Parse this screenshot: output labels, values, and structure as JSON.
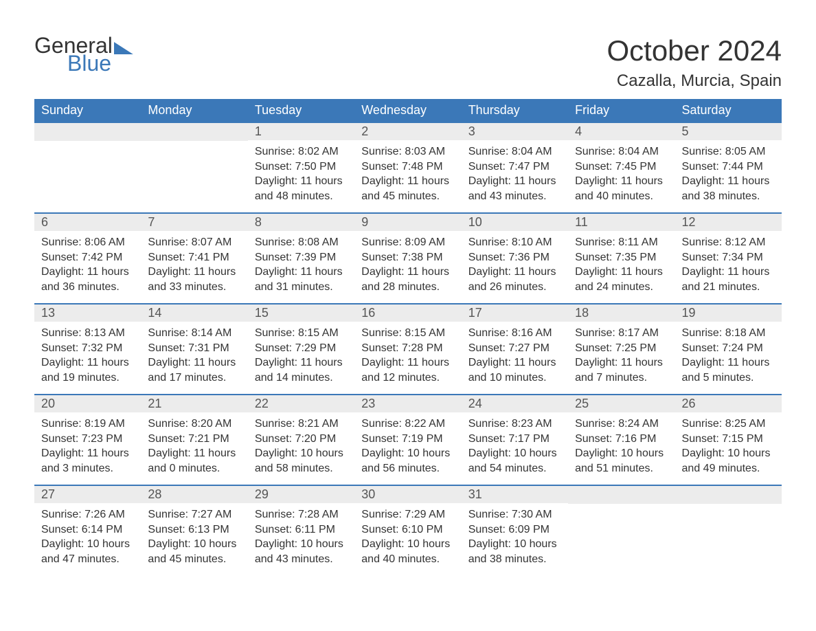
{
  "brand": {
    "word1": "General",
    "word2": "Blue"
  },
  "title": "October 2024",
  "location": "Cazalla, Murcia, Spain",
  "colors": {
    "header_bg": "#3b78b8",
    "header_text": "#ffffff",
    "daynum_bg": "#ececec",
    "text": "#333333",
    "row_border": "#3b78b8",
    "page_bg": "#ffffff"
  },
  "fonts": {
    "month_title_pt": 42,
    "location_pt": 24,
    "day_header_pt": 18,
    "daynum_pt": 18,
    "body_pt": 16
  },
  "day_headers": [
    "Sunday",
    "Monday",
    "Tuesday",
    "Wednesday",
    "Thursday",
    "Friday",
    "Saturday"
  ],
  "labels": {
    "sunrise": "Sunrise:",
    "sunset": "Sunset:",
    "daylight": "Daylight:"
  },
  "weeks": [
    [
      null,
      null,
      {
        "n": "1",
        "sr": "8:02 AM",
        "ss": "7:50 PM",
        "dl": "11 hours and 48 minutes."
      },
      {
        "n": "2",
        "sr": "8:03 AM",
        "ss": "7:48 PM",
        "dl": "11 hours and 45 minutes."
      },
      {
        "n": "3",
        "sr": "8:04 AM",
        "ss": "7:47 PM",
        "dl": "11 hours and 43 minutes."
      },
      {
        "n": "4",
        "sr": "8:04 AM",
        "ss": "7:45 PM",
        "dl": "11 hours and 40 minutes."
      },
      {
        "n": "5",
        "sr": "8:05 AM",
        "ss": "7:44 PM",
        "dl": "11 hours and 38 minutes."
      }
    ],
    [
      {
        "n": "6",
        "sr": "8:06 AM",
        "ss": "7:42 PM",
        "dl": "11 hours and 36 minutes."
      },
      {
        "n": "7",
        "sr": "8:07 AM",
        "ss": "7:41 PM",
        "dl": "11 hours and 33 minutes."
      },
      {
        "n": "8",
        "sr": "8:08 AM",
        "ss": "7:39 PM",
        "dl": "11 hours and 31 minutes."
      },
      {
        "n": "9",
        "sr": "8:09 AM",
        "ss": "7:38 PM",
        "dl": "11 hours and 28 minutes."
      },
      {
        "n": "10",
        "sr": "8:10 AM",
        "ss": "7:36 PM",
        "dl": "11 hours and 26 minutes."
      },
      {
        "n": "11",
        "sr": "8:11 AM",
        "ss": "7:35 PM",
        "dl": "11 hours and 24 minutes."
      },
      {
        "n": "12",
        "sr": "8:12 AM",
        "ss": "7:34 PM",
        "dl": "11 hours and 21 minutes."
      }
    ],
    [
      {
        "n": "13",
        "sr": "8:13 AM",
        "ss": "7:32 PM",
        "dl": "11 hours and 19 minutes."
      },
      {
        "n": "14",
        "sr": "8:14 AM",
        "ss": "7:31 PM",
        "dl": "11 hours and 17 minutes."
      },
      {
        "n": "15",
        "sr": "8:15 AM",
        "ss": "7:29 PM",
        "dl": "11 hours and 14 minutes."
      },
      {
        "n": "16",
        "sr": "8:15 AM",
        "ss": "7:28 PM",
        "dl": "11 hours and 12 minutes."
      },
      {
        "n": "17",
        "sr": "8:16 AM",
        "ss": "7:27 PM",
        "dl": "11 hours and 10 minutes."
      },
      {
        "n": "18",
        "sr": "8:17 AM",
        "ss": "7:25 PM",
        "dl": "11 hours and 7 minutes."
      },
      {
        "n": "19",
        "sr": "8:18 AM",
        "ss": "7:24 PM",
        "dl": "11 hours and 5 minutes."
      }
    ],
    [
      {
        "n": "20",
        "sr": "8:19 AM",
        "ss": "7:23 PM",
        "dl": "11 hours and 3 minutes."
      },
      {
        "n": "21",
        "sr": "8:20 AM",
        "ss": "7:21 PM",
        "dl": "11 hours and 0 minutes."
      },
      {
        "n": "22",
        "sr": "8:21 AM",
        "ss": "7:20 PM",
        "dl": "10 hours and 58 minutes."
      },
      {
        "n": "23",
        "sr": "8:22 AM",
        "ss": "7:19 PM",
        "dl": "10 hours and 56 minutes."
      },
      {
        "n": "24",
        "sr": "8:23 AM",
        "ss": "7:17 PM",
        "dl": "10 hours and 54 minutes."
      },
      {
        "n": "25",
        "sr": "8:24 AM",
        "ss": "7:16 PM",
        "dl": "10 hours and 51 minutes."
      },
      {
        "n": "26",
        "sr": "8:25 AM",
        "ss": "7:15 PM",
        "dl": "10 hours and 49 minutes."
      }
    ],
    [
      {
        "n": "27",
        "sr": "7:26 AM",
        "ss": "6:14 PM",
        "dl": "10 hours and 47 minutes."
      },
      {
        "n": "28",
        "sr": "7:27 AM",
        "ss": "6:13 PM",
        "dl": "10 hours and 45 minutes."
      },
      {
        "n": "29",
        "sr": "7:28 AM",
        "ss": "6:11 PM",
        "dl": "10 hours and 43 minutes."
      },
      {
        "n": "30",
        "sr": "7:29 AM",
        "ss": "6:10 PM",
        "dl": "10 hours and 40 minutes."
      },
      {
        "n": "31",
        "sr": "7:30 AM",
        "ss": "6:09 PM",
        "dl": "10 hours and 38 minutes."
      },
      null,
      null
    ]
  ]
}
